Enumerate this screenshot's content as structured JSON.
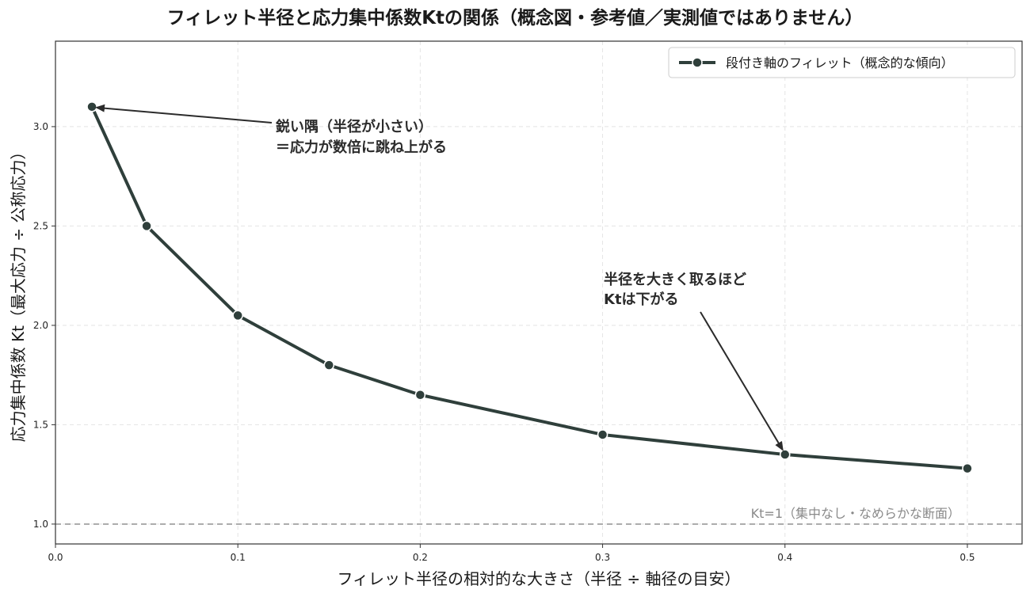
{
  "chart_data": {
    "type": "line",
    "title": "フィレット半径と応力集中係数Ktの関係（概念図・参考値／実測値ではありません）",
    "xlabel": "フィレット半径の相対的な大きさ（半径 ÷ 軸径の目安）",
    "ylabel": "応力集中係数 Kt（最大応力 ÷ 公称応力）",
    "xlim": [
      0.0,
      0.53
    ],
    "ylim": [
      0.9,
      3.43
    ],
    "x_ticks": [
      "0.0",
      "0.1",
      "0.2",
      "0.3",
      "0.4",
      "0.5"
    ],
    "y_ticks": [
      "1.0",
      "1.5",
      "2.0",
      "2.5",
      "3.0"
    ],
    "grid": true,
    "legend_position": "top-right",
    "series": [
      {
        "name": "段付き軸のフィレット（概念的な傾向）",
        "color": "#2f3f3b",
        "x": [
          0.02,
          0.05,
          0.1,
          0.15,
          0.2,
          0.3,
          0.4,
          0.5
        ],
        "y": [
          3.1,
          2.5,
          2.05,
          1.8,
          1.65,
          1.45,
          1.35,
          1.28
        ]
      }
    ],
    "reference_line": {
      "y": 1.0,
      "label": "Kt=1（集中なし・なめらかな断面）",
      "color": "#999999"
    },
    "annotations": [
      {
        "lines": [
          "鋭い隅（半径が小さい）",
          "＝応力が数倍に跳ね上がる"
        ],
        "target": [
          0.02,
          3.1
        ]
      },
      {
        "lines": [
          "半径を大きく取るほど",
          "Ktは下がる"
        ],
        "target": [
          0.4,
          1.35
        ]
      }
    ]
  }
}
